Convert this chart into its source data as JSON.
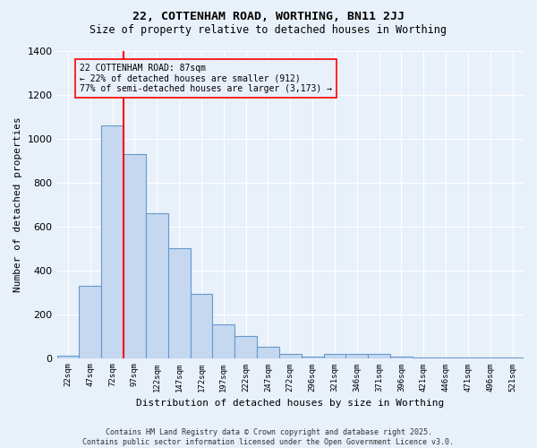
{
  "title1": "22, COTTENHAM ROAD, WORTHING, BN11 2JJ",
  "title2": "Size of property relative to detached houses in Worthing",
  "xlabel": "Distribution of detached houses by size in Worthing",
  "ylabel": "Number of detached properties",
  "annotation_title": "22 COTTENHAM ROAD: 87sqm",
  "annotation_line1": "← 22% of detached houses are smaller (912)",
  "annotation_line2": "77% of semi-detached houses are larger (3,173) →",
  "bar_labels": [
    "22sqm",
    "47sqm",
    "72sqm",
    "97sqm",
    "122sqm",
    "147sqm",
    "172sqm",
    "197sqm",
    "222sqm",
    "247sqm",
    "272sqm",
    "296sqm",
    "321sqm",
    "346sqm",
    "371sqm",
    "396sqm",
    "421sqm",
    "446sqm",
    "471sqm",
    "496sqm",
    "521sqm"
  ],
  "bar_values": [
    10,
    330,
    1060,
    930,
    660,
    500,
    290,
    155,
    100,
    50,
    20,
    8,
    20,
    20,
    20,
    8,
    3,
    3,
    3,
    3,
    3
  ],
  "bar_color": "#c5d8f0",
  "bar_edge_color": "#6699cc",
  "red_line_x": 2,
  "ylim": [
    0,
    1400
  ],
  "yticks": [
    0,
    200,
    400,
    600,
    800,
    1000,
    1200,
    1400
  ],
  "bg_color": "#e8f0fa",
  "grid_color": "#ffffff",
  "footer1": "Contains HM Land Registry data © Crown copyright and database right 2025.",
  "footer2": "Contains public sector information licensed under the Open Government Licence v3.0."
}
